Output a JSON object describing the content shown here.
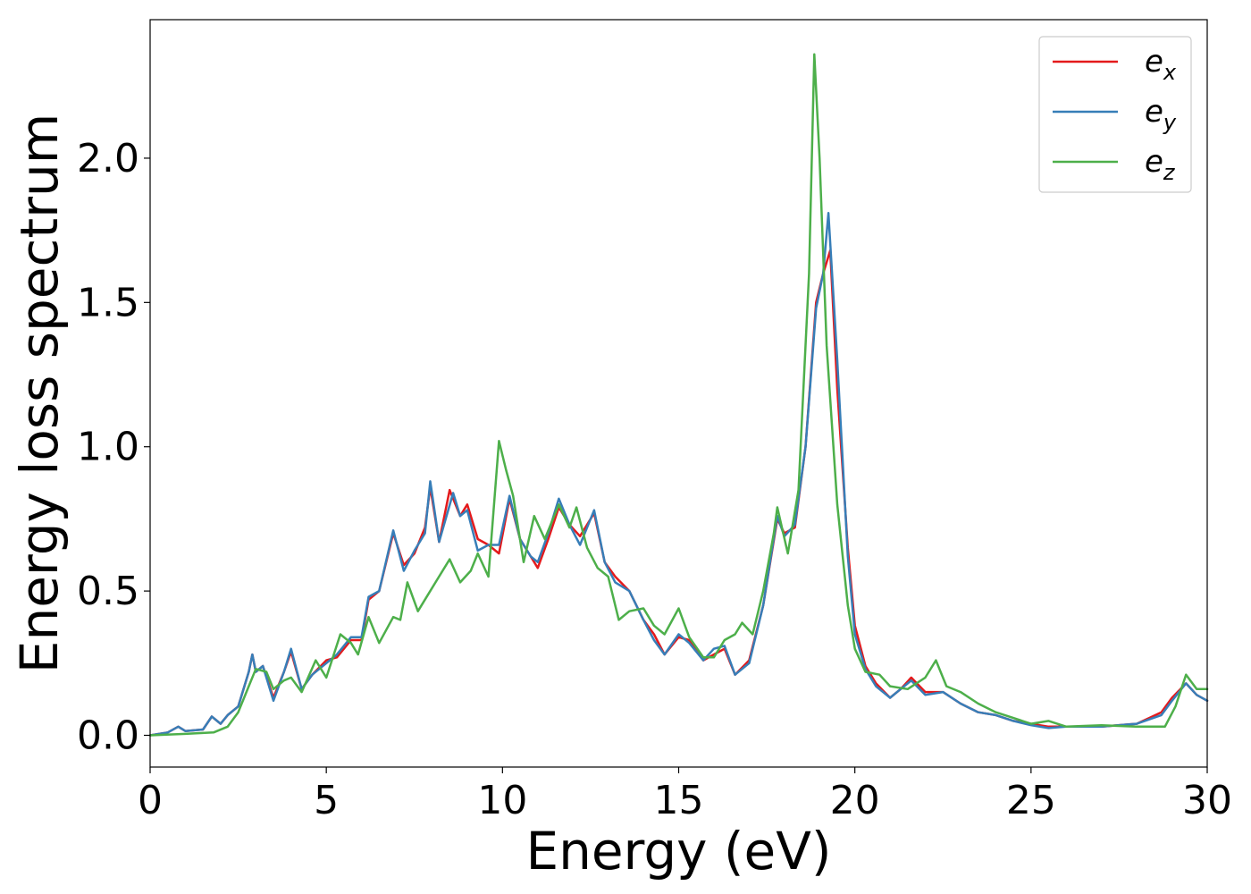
{
  "chart_data": {
    "type": "line",
    "xlabel": "Energy (eV)",
    "ylabel": "Energy loss spectrum",
    "xlim": [
      0,
      30
    ],
    "ylim": [
      -0.11,
      2.48
    ],
    "xticks": [
      0,
      5,
      10,
      15,
      20,
      25,
      30
    ],
    "xtick_labels": [
      "0",
      "5",
      "10",
      "15",
      "20",
      "25",
      "30"
    ],
    "yticks": [
      0.0,
      0.5,
      1.0,
      1.5,
      2.0
    ],
    "ytick_labels": [
      "0.0",
      "0.5",
      "1.0",
      "1.5",
      "2.0"
    ],
    "grid": false,
    "legend_position": "top-right",
    "series": [
      {
        "name": "e",
        "subscript": "x",
        "color": "#e41a1c",
        "points": [
          [
            0,
            0.0
          ],
          [
            0.5,
            0.01
          ],
          [
            0.8,
            0.03
          ],
          [
            1.0,
            0.015
          ],
          [
            1.5,
            0.02
          ],
          [
            1.75,
            0.065
          ],
          [
            2.0,
            0.04
          ],
          [
            2.2,
            0.07
          ],
          [
            2.5,
            0.1
          ],
          [
            2.8,
            0.22
          ],
          [
            2.9,
            0.28
          ],
          [
            3.0,
            0.22
          ],
          [
            3.2,
            0.24
          ],
          [
            3.5,
            0.13
          ],
          [
            3.8,
            0.22
          ],
          [
            4.0,
            0.29
          ],
          [
            4.3,
            0.16
          ],
          [
            4.6,
            0.21
          ],
          [
            5.0,
            0.26
          ],
          [
            5.3,
            0.27
          ],
          [
            5.7,
            0.33
          ],
          [
            6.0,
            0.33
          ],
          [
            6.2,
            0.47
          ],
          [
            6.5,
            0.5
          ],
          [
            6.9,
            0.7
          ],
          [
            7.2,
            0.59
          ],
          [
            7.5,
            0.63
          ],
          [
            7.8,
            0.72
          ],
          [
            7.95,
            0.86
          ],
          [
            8.2,
            0.67
          ],
          [
            8.5,
            0.85
          ],
          [
            8.8,
            0.76
          ],
          [
            9.0,
            0.8
          ],
          [
            9.3,
            0.68
          ],
          [
            9.6,
            0.66
          ],
          [
            9.9,
            0.63
          ],
          [
            10.2,
            0.82
          ],
          [
            10.5,
            0.68
          ],
          [
            10.8,
            0.62
          ],
          [
            11.0,
            0.58
          ],
          [
            11.3,
            0.68
          ],
          [
            11.6,
            0.79
          ],
          [
            11.9,
            0.73
          ],
          [
            12.2,
            0.69
          ],
          [
            12.6,
            0.77
          ],
          [
            12.9,
            0.6
          ],
          [
            13.2,
            0.55
          ],
          [
            13.6,
            0.5
          ],
          [
            14.0,
            0.4
          ],
          [
            14.3,
            0.35
          ],
          [
            14.6,
            0.28
          ],
          [
            15.0,
            0.34
          ],
          [
            15.3,
            0.33
          ],
          [
            15.7,
            0.26
          ],
          [
            16.0,
            0.28
          ],
          [
            16.3,
            0.3
          ],
          [
            16.6,
            0.21
          ],
          [
            17.0,
            0.26
          ],
          [
            17.4,
            0.45
          ],
          [
            17.8,
            0.75
          ],
          [
            18.0,
            0.7
          ],
          [
            18.3,
            0.72
          ],
          [
            18.6,
            1.0
          ],
          [
            18.9,
            1.5
          ],
          [
            19.1,
            1.6
          ],
          [
            19.3,
            1.68
          ],
          [
            19.5,
            1.2
          ],
          [
            19.8,
            0.65
          ],
          [
            20.0,
            0.38
          ],
          [
            20.3,
            0.24
          ],
          [
            20.6,
            0.18
          ],
          [
            21.0,
            0.13
          ],
          [
            21.3,
            0.16
          ],
          [
            21.6,
            0.2
          ],
          [
            22.0,
            0.15
          ],
          [
            22.5,
            0.15
          ],
          [
            23.0,
            0.11
          ],
          [
            23.5,
            0.08
          ],
          [
            24.0,
            0.07
          ],
          [
            24.5,
            0.05
          ],
          [
            25.0,
            0.04
          ],
          [
            25.5,
            0.03
          ],
          [
            26.0,
            0.03
          ],
          [
            27.0,
            0.03
          ],
          [
            28.0,
            0.04
          ],
          [
            28.7,
            0.08
          ],
          [
            29.0,
            0.13
          ],
          [
            29.4,
            0.18
          ],
          [
            29.7,
            0.14
          ],
          [
            30.0,
            0.12
          ]
        ]
      },
      {
        "name": "e",
        "subscript": "y",
        "color": "#377eb8",
        "points": [
          [
            0,
            0.0
          ],
          [
            0.5,
            0.01
          ],
          [
            0.8,
            0.03
          ],
          [
            1.0,
            0.015
          ],
          [
            1.5,
            0.02
          ],
          [
            1.75,
            0.065
          ],
          [
            2.0,
            0.04
          ],
          [
            2.2,
            0.07
          ],
          [
            2.5,
            0.1
          ],
          [
            2.8,
            0.22
          ],
          [
            2.9,
            0.28
          ],
          [
            3.0,
            0.22
          ],
          [
            3.2,
            0.24
          ],
          [
            3.5,
            0.12
          ],
          [
            3.8,
            0.22
          ],
          [
            4.0,
            0.3
          ],
          [
            4.3,
            0.16
          ],
          [
            4.6,
            0.21
          ],
          [
            5.0,
            0.25
          ],
          [
            5.3,
            0.28
          ],
          [
            5.7,
            0.34
          ],
          [
            6.0,
            0.34
          ],
          [
            6.2,
            0.48
          ],
          [
            6.5,
            0.5
          ],
          [
            6.9,
            0.71
          ],
          [
            7.2,
            0.57
          ],
          [
            7.5,
            0.64
          ],
          [
            7.8,
            0.7
          ],
          [
            7.95,
            0.88
          ],
          [
            8.2,
            0.67
          ],
          [
            8.6,
            0.84
          ],
          [
            8.8,
            0.76
          ],
          [
            9.0,
            0.78
          ],
          [
            9.3,
            0.64
          ],
          [
            9.6,
            0.66
          ],
          [
            9.9,
            0.66
          ],
          [
            10.2,
            0.83
          ],
          [
            10.5,
            0.68
          ],
          [
            10.8,
            0.62
          ],
          [
            11.0,
            0.6
          ],
          [
            11.3,
            0.7
          ],
          [
            11.6,
            0.82
          ],
          [
            11.9,
            0.73
          ],
          [
            12.2,
            0.66
          ],
          [
            12.6,
            0.78
          ],
          [
            12.9,
            0.6
          ],
          [
            13.2,
            0.53
          ],
          [
            13.6,
            0.5
          ],
          [
            14.0,
            0.4
          ],
          [
            14.3,
            0.33
          ],
          [
            14.6,
            0.28
          ],
          [
            15.0,
            0.35
          ],
          [
            15.3,
            0.32
          ],
          [
            15.7,
            0.26
          ],
          [
            16.0,
            0.3
          ],
          [
            16.3,
            0.31
          ],
          [
            16.6,
            0.21
          ],
          [
            17.0,
            0.25
          ],
          [
            17.4,
            0.45
          ],
          [
            17.8,
            0.76
          ],
          [
            18.0,
            0.69
          ],
          [
            18.3,
            0.73
          ],
          [
            18.6,
            1.0
          ],
          [
            18.9,
            1.48
          ],
          [
            19.1,
            1.6
          ],
          [
            19.25,
            1.81
          ],
          [
            19.5,
            1.3
          ],
          [
            19.8,
            0.62
          ],
          [
            20.0,
            0.35
          ],
          [
            20.3,
            0.23
          ],
          [
            20.6,
            0.17
          ],
          [
            21.0,
            0.13
          ],
          [
            21.3,
            0.16
          ],
          [
            21.6,
            0.19
          ],
          [
            22.0,
            0.14
          ],
          [
            22.5,
            0.15
          ],
          [
            23.0,
            0.11
          ],
          [
            23.5,
            0.08
          ],
          [
            24.0,
            0.07
          ],
          [
            24.5,
            0.05
          ],
          [
            25.0,
            0.035
          ],
          [
            25.5,
            0.025
          ],
          [
            26.0,
            0.03
          ],
          [
            27.0,
            0.03
          ],
          [
            28.0,
            0.04
          ],
          [
            28.7,
            0.07
          ],
          [
            29.0,
            0.12
          ],
          [
            29.4,
            0.18
          ],
          [
            29.7,
            0.14
          ],
          [
            30.0,
            0.12
          ]
        ]
      },
      {
        "name": "e",
        "subscript": "z",
        "color": "#4daf4a",
        "points": [
          [
            0,
            0.0
          ],
          [
            1.0,
            0.005
          ],
          [
            1.8,
            0.01
          ],
          [
            2.2,
            0.03
          ],
          [
            2.5,
            0.08
          ],
          [
            2.8,
            0.17
          ],
          [
            3.0,
            0.23
          ],
          [
            3.3,
            0.22
          ],
          [
            3.5,
            0.16
          ],
          [
            3.8,
            0.19
          ],
          [
            4.0,
            0.2
          ],
          [
            4.3,
            0.15
          ],
          [
            4.7,
            0.26
          ],
          [
            5.0,
            0.2
          ],
          [
            5.4,
            0.35
          ],
          [
            5.7,
            0.32
          ],
          [
            5.9,
            0.28
          ],
          [
            6.2,
            0.41
          ],
          [
            6.5,
            0.32
          ],
          [
            6.9,
            0.41
          ],
          [
            7.1,
            0.4
          ],
          [
            7.3,
            0.53
          ],
          [
            7.6,
            0.43
          ],
          [
            7.9,
            0.49
          ],
          [
            8.1,
            0.53
          ],
          [
            8.5,
            0.61
          ],
          [
            8.8,
            0.53
          ],
          [
            9.1,
            0.57
          ],
          [
            9.3,
            0.63
          ],
          [
            9.6,
            0.55
          ],
          [
            9.9,
            1.02
          ],
          [
            10.1,
            0.92
          ],
          [
            10.3,
            0.83
          ],
          [
            10.6,
            0.6
          ],
          [
            10.9,
            0.76
          ],
          [
            11.2,
            0.68
          ],
          [
            11.6,
            0.8
          ],
          [
            11.9,
            0.72
          ],
          [
            12.1,
            0.79
          ],
          [
            12.4,
            0.65
          ],
          [
            12.7,
            0.58
          ],
          [
            13.0,
            0.55
          ],
          [
            13.3,
            0.4
          ],
          [
            13.6,
            0.43
          ],
          [
            14.0,
            0.44
          ],
          [
            14.3,
            0.38
          ],
          [
            14.6,
            0.35
          ],
          [
            15.0,
            0.44
          ],
          [
            15.3,
            0.34
          ],
          [
            15.7,
            0.27
          ],
          [
            16.0,
            0.27
          ],
          [
            16.3,
            0.33
          ],
          [
            16.6,
            0.35
          ],
          [
            16.8,
            0.39
          ],
          [
            17.1,
            0.35
          ],
          [
            17.4,
            0.5
          ],
          [
            17.7,
            0.7
          ],
          [
            17.8,
            0.79
          ],
          [
            18.1,
            0.63
          ],
          [
            18.4,
            0.85
          ],
          [
            18.7,
            1.6
          ],
          [
            18.85,
            2.36
          ],
          [
            19.0,
            2.0
          ],
          [
            19.2,
            1.35
          ],
          [
            19.5,
            0.8
          ],
          [
            19.8,
            0.45
          ],
          [
            20.0,
            0.3
          ],
          [
            20.3,
            0.22
          ],
          [
            20.7,
            0.21
          ],
          [
            21.0,
            0.17
          ],
          [
            21.5,
            0.16
          ],
          [
            22.0,
            0.2
          ],
          [
            22.3,
            0.26
          ],
          [
            22.6,
            0.17
          ],
          [
            23.0,
            0.15
          ],
          [
            23.5,
            0.11
          ],
          [
            24.0,
            0.08
          ],
          [
            24.5,
            0.06
          ],
          [
            25.0,
            0.04
          ],
          [
            25.5,
            0.05
          ],
          [
            26.0,
            0.03
          ],
          [
            27.0,
            0.035
          ],
          [
            28.0,
            0.03
          ],
          [
            28.8,
            0.03
          ],
          [
            29.1,
            0.1
          ],
          [
            29.4,
            0.21
          ],
          [
            29.7,
            0.16
          ],
          [
            30.0,
            0.16
          ]
        ]
      }
    ]
  }
}
